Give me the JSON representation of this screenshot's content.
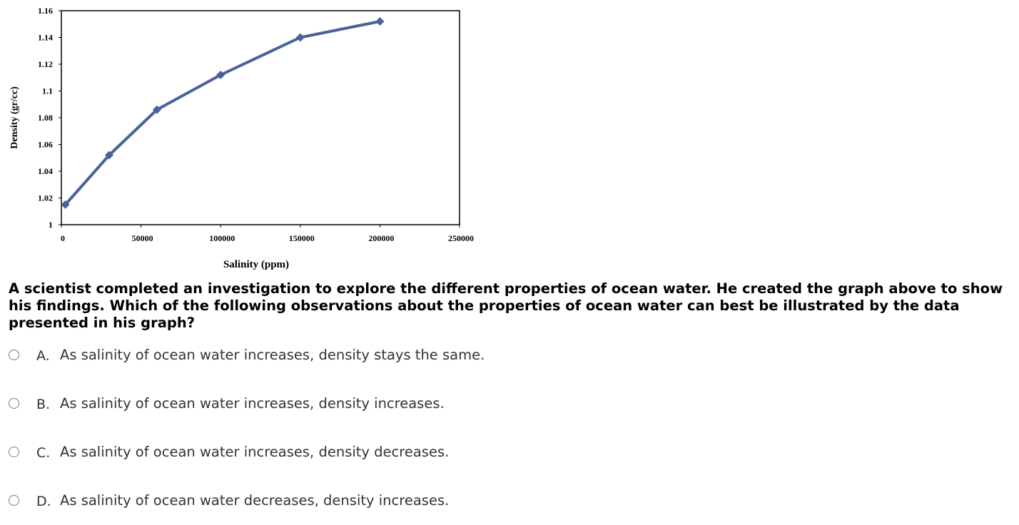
{
  "chart_data": {
    "type": "line",
    "xlabel": "Salinity (ppm)",
    "ylabel": "Density (gr/cc)",
    "xlim": [
      0,
      250000
    ],
    "ylim": [
      1,
      1.16
    ],
    "x_ticks": [
      "0",
      "50000",
      "100000",
      "150000",
      "200000",
      "250000"
    ],
    "y_ticks": [
      "1",
      "1.02",
      "1.04",
      "1.06",
      "1.08",
      "1.1",
      "1.12",
      "1.14",
      "1.16"
    ],
    "series": [
      {
        "x": [
          2500,
          30000,
          60000,
          100000,
          150000,
          200000
        ],
        "values": [
          1.015,
          1.052,
          1.086,
          1.112,
          1.14,
          1.152
        ],
        "color": "#4a6199",
        "marker": "diamond"
      }
    ],
    "grid": false
  },
  "question": {
    "text": "A scientist completed an investigation to explore the different properties of ocean water.  He created the graph above to show his findings.  Which of the following observations about the properties of ocean water can best be illustrated by the data presented in his graph?"
  },
  "options": [
    {
      "letter": "A.",
      "text": "As salinity of ocean water increases, density stays the same."
    },
    {
      "letter": "B.",
      "text": "As salinity of ocean water increases, density increases."
    },
    {
      "letter": "C.",
      "text": "As salinity of ocean water increases, density decreases."
    },
    {
      "letter": "D.",
      "text": "As salinity of ocean water decreases, density increases."
    }
  ]
}
